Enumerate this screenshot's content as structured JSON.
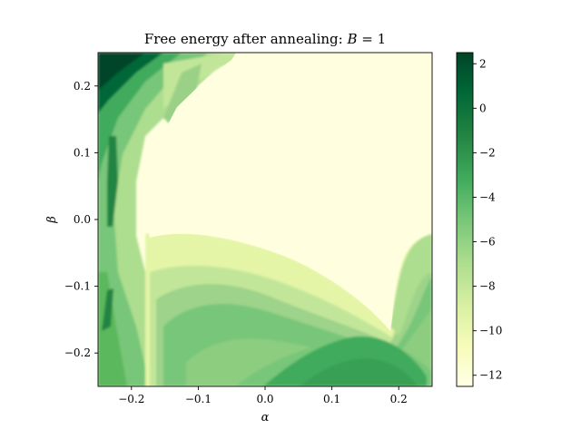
{
  "chart_data": {
    "type": "heatmap",
    "title": "Free energy after annealing: B = 1",
    "title_prefix": "Free energy after annealing: ",
    "title_var": "B",
    "title_suffix": " = 1",
    "xlabel": "α",
    "ylabel": "β",
    "xlim": [
      -0.25,
      0.25
    ],
    "ylim": [
      -0.25,
      0.25
    ],
    "x_ticks": [
      -0.2,
      -0.1,
      0.0,
      0.1,
      0.2
    ],
    "x_tick_labels": [
      "−0.2",
      "−0.1",
      "0.0",
      "0.1",
      "0.2"
    ],
    "y_ticks": [
      0.2,
      0.1,
      0.0,
      -0.1,
      -0.2
    ],
    "y_tick_labels": [
      "0.2",
      "0.1",
      "0.0",
      "−0.1",
      "−0.2"
    ],
    "colorbar": {
      "colormap": "YlGn",
      "range": [
        -12.5,
        2.5
      ],
      "ticks": [
        2,
        0,
        -2,
        -4,
        -6,
        -8,
        -10,
        -12
      ],
      "tick_labels": [
        "2",
        "0",
        "−2",
        "−4",
        "−6",
        "−8",
        "−10",
        "−12"
      ]
    },
    "grid": false,
    "value_regions": [
      {
        "region": "top-left corner",
        "approx_value": 2.0
      },
      {
        "region": "left edge band",
        "approx_value": -2.0
      },
      {
        "region": "central plateau",
        "approx_value": -12.0
      },
      {
        "region": "lower-left fan bands",
        "approx_value": -6.0
      },
      {
        "region": "bottom-right basin",
        "approx_value": -2.5
      },
      {
        "region": "right-side lobe",
        "approx_value": -7.0
      }
    ],
    "colors": {
      "min": "#ffffe5",
      "low": "#f7fcb9",
      "mid": "#78c679",
      "high": "#238443",
      "max": "#004529"
    }
  }
}
